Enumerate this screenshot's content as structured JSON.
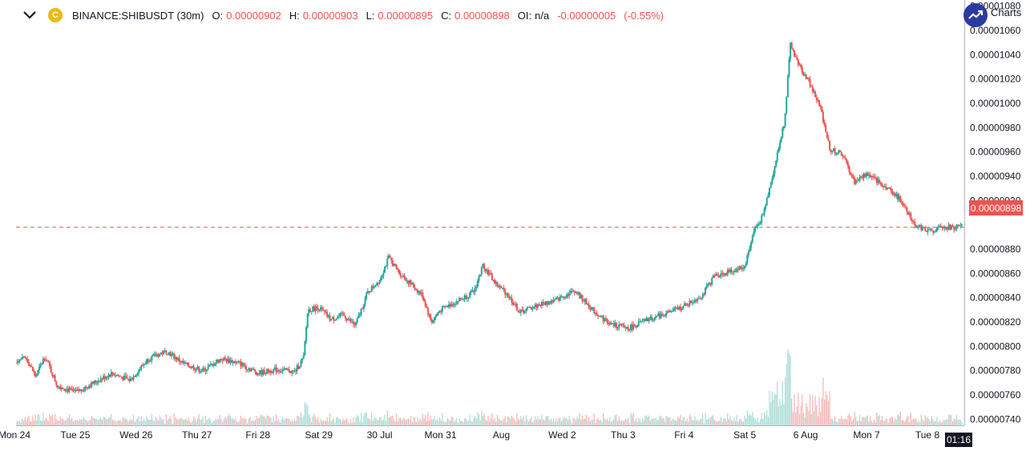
{
  "legend": {
    "symbol": "BINANCE:SHIBUSDT (30m)",
    "o_label": "O:",
    "o_value": "0.00000902",
    "h_label": "H:",
    "h_value": "0.00000903",
    "l_label": "L:",
    "l_value": "0.00000895",
    "c_label": "C:",
    "c_value": "0.00000898",
    "oi_label": "OI:",
    "oi_value": "n/a",
    "change": "-0.00000005",
    "change_pct": "(-0.55%)"
  },
  "branding": {
    "text": "Charts"
  },
  "current_price_label": "0.00000898",
  "time_badge": "01:16",
  "colors": {
    "up": "#26a69a",
    "down": "#ef5350",
    "vol_up": "#a8dcd5",
    "vol_down": "#f5b5b3",
    "price_line": "#ef5350"
  },
  "chart_data": {
    "type": "candlestick",
    "symbol": "BINANCE:SHIBUSDT",
    "interval": "30m",
    "y_ticks": [
      "0.00001080",
      "0.00001060",
      "0.00001040",
      "0.00001020",
      "0.00001000",
      "0.00000980",
      "0.00000960",
      "0.00000940",
      "0.00000920",
      "0.00000880",
      "0.00000860",
      "0.00000840",
      "0.00000820",
      "0.00000800",
      "0.00000780",
      "0.00000760",
      "0.00000740"
    ],
    "x_ticks": [
      "Mon 24",
      "Tue 25",
      "Wed 26",
      "Thu 27",
      "Fri 28",
      "Sat 29",
      "30 Jul",
      "Mon 31",
      "Aug",
      "Wed 2",
      "Thu 3",
      "Fri 4",
      "Sat 5",
      "6 Aug",
      "Mon 7",
      "Tue 8"
    ],
    "last_price": 8.98e-06,
    "ylim": [
      7.35e-06,
      1.085e-05
    ],
    "price_path": [
      [
        0,
        7.88e-06
      ],
      [
        0.2,
        7.9e-06
      ],
      [
        0.35,
        7.75e-06
      ],
      [
        0.5,
        7.92e-06
      ],
      [
        0.7,
        7.68e-06
      ],
      [
        1.0,
        7.62e-06
      ],
      [
        1.3,
        7.7e-06
      ],
      [
        1.6,
        7.78e-06
      ],
      [
        1.9,
        7.72e-06
      ],
      [
        2.2,
        7.9e-06
      ],
      [
        2.5,
        7.96e-06
      ],
      [
        2.8,
        7.85e-06
      ],
      [
        3.1,
        7.8e-06
      ],
      [
        3.4,
        7.9e-06
      ],
      [
        3.7,
        7.86e-06
      ],
      [
        4.0,
        7.78e-06
      ],
      [
        4.3,
        7.81e-06
      ],
      [
        4.6,
        7.79e-06
      ],
      [
        4.75,
        7.9e-06
      ],
      [
        4.82,
        8.3e-06
      ],
      [
        5.0,
        8.32e-06
      ],
      [
        5.2,
        8.22e-06
      ],
      [
        5.4,
        8.26e-06
      ],
      [
        5.6,
        8.17e-06
      ],
      [
        5.8,
        8.44e-06
      ],
      [
        6.0,
        8.55e-06
      ],
      [
        6.15,
        8.73e-06
      ],
      [
        6.3,
        8.62e-06
      ],
      [
        6.5,
        8.52e-06
      ],
      [
        6.7,
        8.42e-06
      ],
      [
        6.85,
        8.2e-06
      ],
      [
        7.0,
        8.3e-06
      ],
      [
        7.3,
        8.38e-06
      ],
      [
        7.55,
        8.45e-06
      ],
      [
        7.7,
        8.67e-06
      ],
      [
        7.9,
        8.52e-06
      ],
      [
        8.1,
        8.43e-06
      ],
      [
        8.3,
        8.28e-06
      ],
      [
        8.6,
        8.34e-06
      ],
      [
        8.9,
        8.38e-06
      ],
      [
        9.2,
        8.46e-06
      ],
      [
        9.5,
        8.3e-06
      ],
      [
        9.8,
        8.18e-06
      ],
      [
        10.1,
        8.15e-06
      ],
      [
        10.4,
        8.22e-06
      ],
      [
        10.7,
        8.27e-06
      ],
      [
        11.0,
        8.33e-06
      ],
      [
        11.3,
        8.42e-06
      ],
      [
        11.5,
        8.58e-06
      ],
      [
        11.8,
        8.62e-06
      ],
      [
        12.0,
        8.66e-06
      ],
      [
        12.15,
        8.95e-06
      ],
      [
        12.3,
        9.08e-06
      ],
      [
        12.5,
        9.5e-06
      ],
      [
        12.65,
        9.85e-06
      ],
      [
        12.75,
        1.048e-05
      ],
      [
        12.9,
        1.03e-05
      ],
      [
        13.05,
        1.018e-05
      ],
      [
        13.25,
        9.95e-06
      ],
      [
        13.4,
        9.62e-06
      ],
      [
        13.6,
        9.58e-06
      ],
      [
        13.8,
        9.35e-06
      ],
      [
        14.0,
        9.42e-06
      ],
      [
        14.2,
        9.35e-06
      ],
      [
        14.4,
        9.28e-06
      ],
      [
        14.6,
        9.18e-06
      ],
      [
        14.8,
        9e-06
      ],
      [
        15.0,
        8.95e-06
      ],
      [
        15.3,
        8.98e-06
      ],
      [
        15.6,
        8.98e-06
      ]
    ]
  }
}
